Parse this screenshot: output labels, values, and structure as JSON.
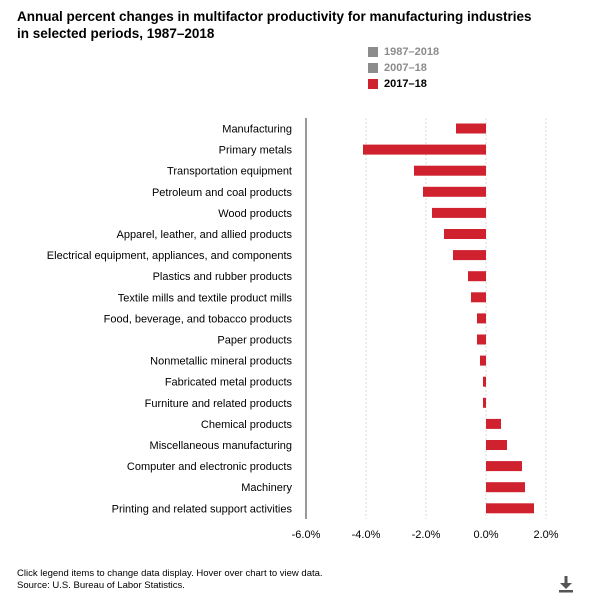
{
  "title": "Annual percent changes in multifactor productivity for manufacturing industries in selected periods, 1987–2018",
  "legend": [
    {
      "label": "1987–2018",
      "color": "#8c8c8c",
      "active": false
    },
    {
      "label": "2007–18",
      "color": "#8c8c8c",
      "active": false
    },
    {
      "label": "2017–18",
      "color": "#d0212f",
      "active": true
    }
  ],
  "footer": {
    "line1": "Click legend items to change data display. Hover over chart to view data.",
    "line2": "Source: U.S. Bureau of Labor Statistics."
  },
  "download_icon": "download-icon",
  "chart_data": {
    "type": "bar",
    "orientation": "horizontal",
    "categories": [
      "Manufacturing",
      "Primary metals",
      "Transportation equipment",
      "Petroleum and coal products",
      "Wood products",
      "Apparel, leather, and allied products",
      "Electrical equipment, appliances, and components",
      "Plastics and rubber products",
      "Textile mills and textile product mills",
      "Food, beverage, and tobacco products",
      "Paper products",
      "Nonmetallic mineral products",
      "Fabricated metal products",
      "Furniture and related products",
      "Chemical products",
      "Miscellaneous manufacturing",
      "Computer and electronic products",
      "Machinery",
      "Printing and related support activities"
    ],
    "series": [
      {
        "name": "2017–18",
        "color": "#d0212f",
        "values": [
          -1.0,
          -4.1,
          -2.4,
          -2.1,
          -1.8,
          -1.4,
          -1.1,
          -0.6,
          -0.5,
          -0.3,
          -0.3,
          -0.2,
          -0.1,
          -0.1,
          0.5,
          0.7,
          1.2,
          1.3,
          1.6
        ]
      }
    ],
    "xlim": [
      -6,
      2
    ],
    "xticks": [
      -6,
      -4,
      -2,
      0,
      2
    ],
    "xtick_labels": [
      "-6.0%",
      "-4.0%",
      "-2.0%",
      "0.0%",
      "2.0%"
    ],
    "grid": true
  }
}
